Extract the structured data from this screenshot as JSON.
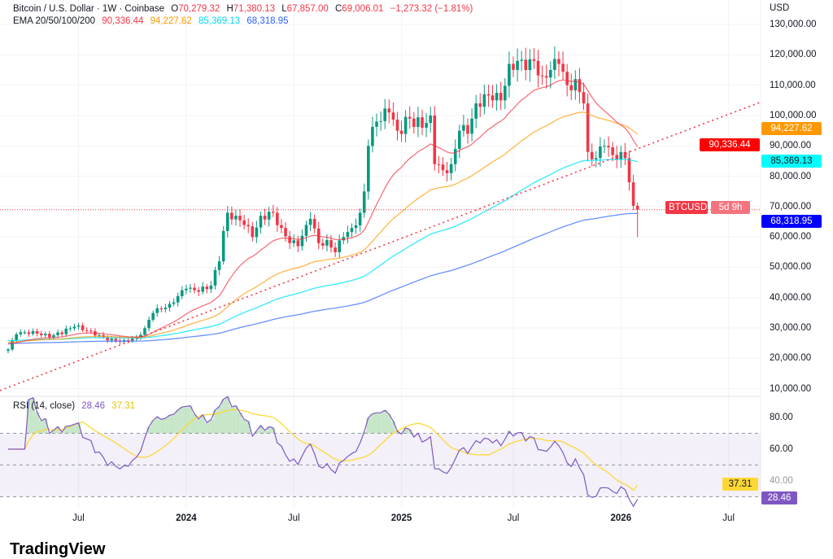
{
  "header": {
    "symbol": "Bitcoin / U.S. Dollar · 1W · Coinbase",
    "o_label": "O",
    "o": "70,279.32",
    "h_label": "H",
    "h": "71,380.13",
    "l_label": "L",
    "l": "67,857.00",
    "c_label": "C",
    "c": "69,006.01",
    "change": "−1,273.32 (−1.81%)",
    "ema_label": "EMA 20/50/100/200",
    "ema20": "90,336.44",
    "ema50": "94,227.62",
    "ema100": "85,369.13",
    "ema200": "68,318.95"
  },
  "price_axis": {
    "currency": "USD",
    "labels": [
      "130,000.00",
      "120,000.00",
      "110,000.00",
      "100,000.00",
      "90,000.00",
      "80,000.00",
      "70,000.00",
      "60,000.00",
      "50,000.00",
      "40,000.00",
      "30,000.00",
      "20,000.00",
      "10,000.00"
    ],
    "badges": {
      "ema50": "94,227.62",
      "ema20": "90,336.44",
      "ema100": "85,369.13",
      "ema200": "68,318.95",
      "symbol": "BTCUSD",
      "countdown": "5d 9h"
    }
  },
  "rsi": {
    "label": "RSI (14, close)",
    "value": "28.46",
    "ma": "37.31",
    "axis": [
      "80.00",
      "60.00",
      "40.00"
    ]
  },
  "time_axis": [
    {
      "t": "Jul",
      "w": 17
    },
    {
      "t": "2024",
      "w": 43,
      "year": true
    },
    {
      "t": "Jul",
      "w": 69
    },
    {
      "t": "2025",
      "w": 95,
      "year": true
    },
    {
      "t": "Jul",
      "w": 122
    },
    {
      "t": "2026",
      "w": 148,
      "year": true
    },
    {
      "t": "Jul",
      "w": 174
    }
  ],
  "brand": "TradingView",
  "colors": {
    "up": "#089981",
    "down": "#f23645",
    "ema20": "#f23645",
    "ema50": "#ff9800",
    "ema100": "#00e5ff",
    "ema200": "#2962ff",
    "rsi": "#7e57c2",
    "rsi_ma": "#fdd835",
    "trend": "#f23645"
  },
  "chart_data": {
    "type": "candlestick",
    "title": "Bitcoin / U.S. Dollar · 1W · Coinbase",
    "ylim": [
      10000,
      130000
    ],
    "close_keypoints_week_price": [
      [
        0,
        23000
      ],
      [
        2,
        28000
      ],
      [
        6,
        29000
      ],
      [
        10,
        27000
      ],
      [
        16,
        30500
      ],
      [
        20,
        29000
      ],
      [
        24,
        26000
      ],
      [
        28,
        26000
      ],
      [
        31,
        27000
      ],
      [
        33,
        30000
      ],
      [
        35,
        35000
      ],
      [
        39,
        38000
      ],
      [
        43,
        43000
      ],
      [
        46,
        42000
      ],
      [
        49,
        44000
      ],
      [
        51,
        52000
      ],
      [
        52,
        62000
      ],
      [
        53,
        68000
      ],
      [
        55,
        67000
      ],
      [
        57,
        64000
      ],
      [
        59,
        60000
      ],
      [
        61,
        67000
      ],
      [
        64,
        68000
      ],
      [
        66,
        63000
      ],
      [
        68,
        58000
      ],
      [
        70,
        57000
      ],
      [
        72,
        64000
      ],
      [
        73,
        66000
      ],
      [
        75,
        58000
      ],
      [
        77,
        59000
      ],
      [
        79,
        55000
      ],
      [
        81,
        60000
      ],
      [
        83,
        63000
      ],
      [
        85,
        68000
      ],
      [
        86,
        75000
      ],
      [
        87,
        90000
      ],
      [
        89,
        98000
      ],
      [
        92,
        101000
      ],
      [
        94,
        95000
      ],
      [
        97,
        99000
      ],
      [
        100,
        96000
      ],
      [
        102,
        100000
      ],
      [
        103,
        84000
      ],
      [
        105,
        82000
      ],
      [
        107,
        84000
      ],
      [
        109,
        95000
      ],
      [
        111,
        94000
      ],
      [
        113,
        104000
      ],
      [
        115,
        107000
      ],
      [
        117,
        105000
      ],
      [
        119,
        105000
      ],
      [
        121,
        117000
      ],
      [
        123,
        118000
      ],
      [
        125,
        115000
      ],
      [
        127,
        118000
      ],
      [
        129,
        113000
      ],
      [
        131,
        115000
      ],
      [
        133,
        117000
      ],
      [
        135,
        110000
      ],
      [
        137,
        112000
      ],
      [
        139,
        104000
      ],
      [
        140,
        88000
      ],
      [
        142,
        86000
      ],
      [
        144,
        90000
      ],
      [
        146,
        87000
      ],
      [
        148,
        88000
      ],
      [
        149,
        86000
      ],
      [
        150,
        78000
      ],
      [
        151,
        70279
      ],
      [
        152,
        69006
      ]
    ],
    "last_candle": {
      "open": 70279.32,
      "high": 71380.13,
      "low": 67857.0,
      "close": 69006.01
    },
    "ema_seed": {
      "ema20": 25000,
      "ema50": 25500,
      "ema100": 26000,
      "ema200": 25000
    },
    "trendline_week_price": [
      [
        30,
        26000
      ],
      [
        150,
        88000
      ]
    ],
    "rsi_ylim": [
      20,
      90
    ],
    "rsi_bands": [
      70,
      50,
      30
    ]
  }
}
